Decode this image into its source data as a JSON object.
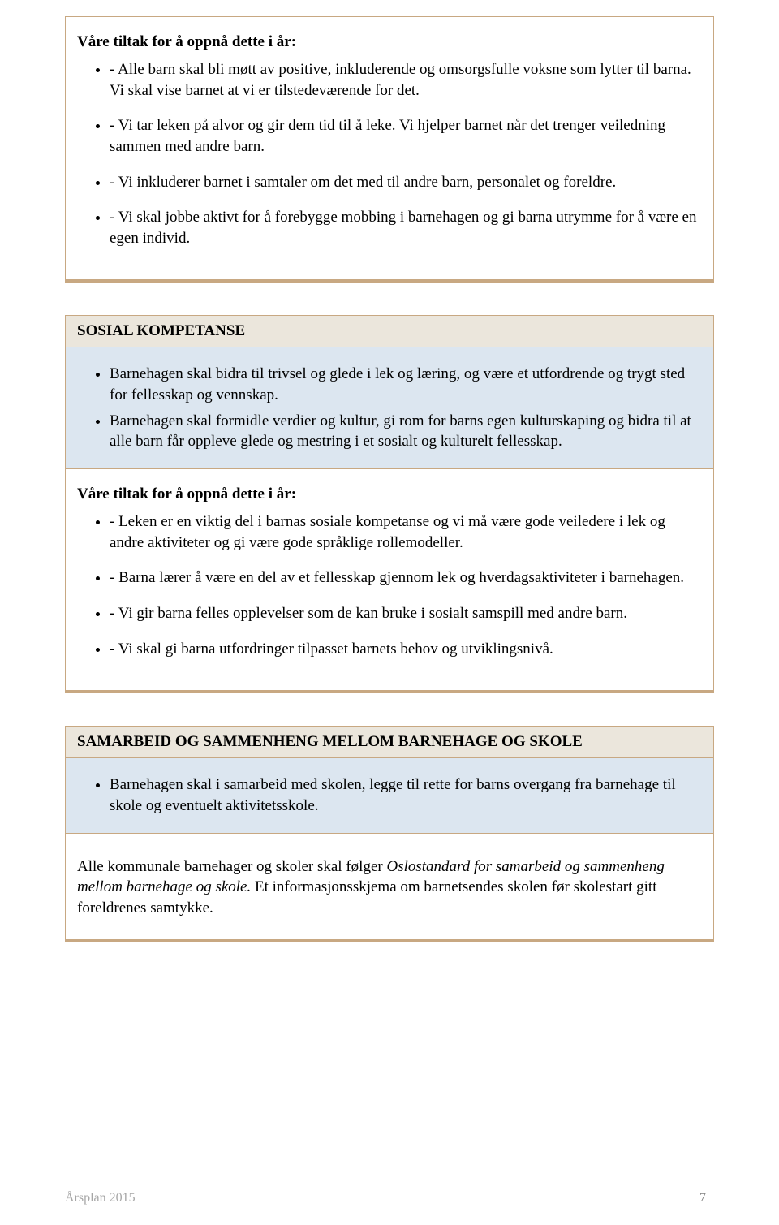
{
  "colors": {
    "box_border": "#c8a882",
    "header_bg": "#ebe6dc",
    "blue_bg": "#dce6f0",
    "white_bg": "#ffffff",
    "text": "#000000",
    "footer_text": "#7f7f7f"
  },
  "box1": {
    "heading": "Våre tiltak for å oppnå dette i år:",
    "items": [
      "- Alle barn skal bli møtt av positive, inkluderende og omsorgsfulle voksne som lytter til barna. Vi skal vise barnet at vi er tilstedeværende for det.",
      "- Vi tar leken på alvor og gir dem tid til å leke. Vi hjelper barnet når det trenger veiledning sammen med andre barn.",
      "- Vi inkluderer barnet i samtaler om det med til andre barn, personalet og foreldre.",
      "- Vi skal jobbe aktivt for å forebygge mobbing i barnehagen og gi barna utrymme for å være en egen individ."
    ]
  },
  "box2": {
    "title": "SOSIAL KOMPETANSE",
    "blue_items": [
      "Barnehagen skal bidra til trivsel og glede i lek og læring, og være et utfordrende og trygt sted for fellesskap og vennskap.",
      "Barnehagen skal formidle verdier og kultur, gi rom for barns egen kulturskaping og bidra til at alle barn får oppleve glede og mestring i et sosialt og kulturelt fellesskap."
    ],
    "white_heading": "Våre tiltak for å oppnå dette i år:",
    "white_items": [
      "- Leken er en viktig del i barnas sosiale kompetanse og vi må være gode veiledere i lek og andre aktiviteter og gi være gode språklige rollemodeller.",
      "- Barna lærer å være en del av et fellesskap gjennom lek og hverdagsaktiviteter i barnehagen.",
      "- Vi gir barna felles opplevelser som de kan bruke i sosialt samspill med andre barn.",
      "- Vi skal gi barna utfordringer tilpasset barnets behov og utviklingsnivå."
    ]
  },
  "box3": {
    "title": "SAMARBEID OG SAMMENHENG MELLOM BARNEHAGE OG SKOLE",
    "blue_items": [
      "Barnehagen skal i samarbeid med skolen, legge til rette for barns overgang fra barnehage til skole og eventuelt aktivitetsskole."
    ],
    "para_pre": "Alle kommunale barnehager og skoler skal følger ",
    "para_italic": "Oslostandard for samarbeid og sammenheng mellom barnehage og skole.",
    "para_post": " Et informasjonsskjema om barnetsendes skolen før skolestart gitt foreldrenes samtykke."
  },
  "footer": {
    "doc_title": "Årsplan 2015",
    "page_number": "7"
  }
}
